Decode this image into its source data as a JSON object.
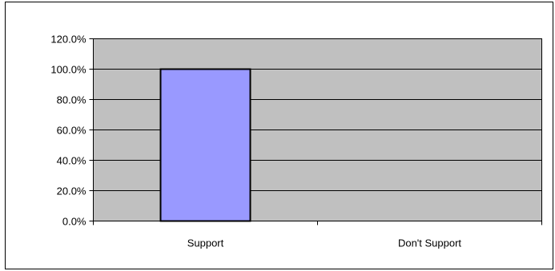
{
  "chart_data": {
    "type": "bar",
    "categories": [
      "Support",
      "Don't Support"
    ],
    "values": [
      100.0,
      0.0
    ],
    "ylim": [
      0,
      120
    ],
    "yticks": [
      0,
      20,
      40,
      60,
      80,
      100,
      120
    ],
    "ytick_labels": [
      "0.0%",
      "20.0%",
      "40.0%",
      "60.0%",
      "80.0%",
      "100.0%",
      "120.0%"
    ],
    "title": "",
    "xlabel": "",
    "ylabel": "",
    "grid": true,
    "legend": "none"
  },
  "colors": {
    "plot_background": "#c0c0c0",
    "bar_fill": "#9999ff",
    "bar_stroke": "#000000",
    "gridline": "#000000",
    "chart_border": "#000000"
  }
}
